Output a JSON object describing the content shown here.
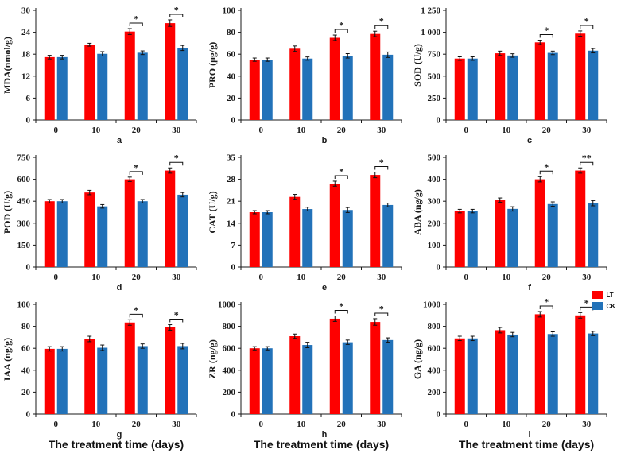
{
  "figure": {
    "xlabel": "The treatment time (days)",
    "legend": {
      "items": [
        {
          "label": "LT",
          "color": "#fe0000"
        },
        {
          "label": "CK",
          "color": "#2272b9"
        }
      ]
    },
    "colors": {
      "lt": "#fe0000",
      "ck": "#2272b9",
      "axis": "#1a1a1a"
    }
  },
  "chart_data": [
    {
      "type": "bar",
      "panel_label": "a",
      "ylabel": "MDA(nmol/g)",
      "ylim": [
        0,
        30
      ],
      "ytick_labels": [
        "0",
        "6",
        "12",
        "18",
        "24",
        "30"
      ],
      "categories": [
        "0",
        "10",
        "20",
        "30"
      ],
      "series": [
        {
          "name": "LT",
          "color": "#fe0000",
          "values": [
            17.2,
            20.6,
            24.2,
            26.5
          ],
          "errors": [
            0.5,
            0.4,
            0.8,
            0.9
          ]
        },
        {
          "name": "CK",
          "color": "#2272b9",
          "values": [
            17.2,
            18.1,
            18.4,
            19.7
          ],
          "errors": [
            0.5,
            0.6,
            0.5,
            0.7
          ]
        }
      ],
      "significance": [
        {
          "category_index": 2,
          "label": "*"
        },
        {
          "category_index": 3,
          "label": "*"
        }
      ]
    },
    {
      "type": "bar",
      "panel_label": "b",
      "ylabel": "PRO (μg/g)",
      "ylim": [
        0,
        100
      ],
      "ytick_labels": [
        "0",
        "20",
        "40",
        "60",
        "80",
        "100"
      ],
      "categories": [
        "0",
        "10",
        "20",
        "30"
      ],
      "series": [
        {
          "name": "LT",
          "color": "#fe0000",
          "values": [
            55,
            65,
            75,
            78.5
          ],
          "errors": [
            1.5,
            2.5,
            2.5,
            2.5
          ]
        },
        {
          "name": "CK",
          "color": "#2272b9",
          "values": [
            55,
            56,
            58.5,
            59.5
          ],
          "errors": [
            1.5,
            1.5,
            2,
            2.5
          ]
        }
      ],
      "significance": [
        {
          "category_index": 2,
          "label": "*"
        },
        {
          "category_index": 3,
          "label": "*"
        }
      ]
    },
    {
      "type": "bar",
      "panel_label": "c",
      "ylabel": "SOD (U/g)",
      "ylim": [
        0,
        1250
      ],
      "ytick_labels": [
        "0",
        "250",
        "500",
        "750",
        "1 000",
        "1 250"
      ],
      "categories": [
        "0",
        "10",
        "20",
        "30"
      ],
      "series": [
        {
          "name": "LT",
          "color": "#fe0000",
          "values": [
            700,
            760,
            885,
            985
          ],
          "errors": [
            20,
            25,
            25,
            30
          ]
        },
        {
          "name": "CK",
          "color": "#2272b9",
          "values": [
            700,
            735,
            765,
            790
          ],
          "errors": [
            20,
            20,
            20,
            25
          ]
        }
      ],
      "significance": [
        {
          "category_index": 2,
          "label": "*"
        },
        {
          "category_index": 3,
          "label": "*"
        }
      ]
    },
    {
      "type": "bar",
      "panel_label": "d",
      "ylabel": "POD (U/g)",
      "ylim": [
        0,
        750
      ],
      "ytick_labels": [
        "0",
        "150",
        "300",
        "450",
        "600",
        "750"
      ],
      "categories": [
        "0",
        "10",
        "20",
        "30"
      ],
      "series": [
        {
          "name": "LT",
          "color": "#fe0000",
          "values": [
            450,
            510,
            600,
            660
          ],
          "errors": [
            12,
            15,
            15,
            18
          ]
        },
        {
          "name": "CK",
          "color": "#2272b9",
          "values": [
            450,
            415,
            450,
            495
          ],
          "errors": [
            12,
            12,
            12,
            15
          ]
        }
      ],
      "significance": [
        {
          "category_index": 2,
          "label": "*"
        },
        {
          "category_index": 3,
          "label": "*"
        }
      ]
    },
    {
      "type": "bar",
      "panel_label": "e",
      "ylabel": "CAT (U/g)",
      "ylim": [
        0,
        35
      ],
      "ytick_labels": [
        "0",
        "7",
        "14",
        "21",
        "28",
        "35"
      ],
      "categories": [
        "0",
        "10",
        "20",
        "30"
      ],
      "series": [
        {
          "name": "LT",
          "color": "#fe0000",
          "values": [
            17.5,
            22.4,
            26.6,
            29.4
          ],
          "errors": [
            0.5,
            0.8,
            0.8,
            0.9
          ]
        },
        {
          "name": "CK",
          "color": "#2272b9",
          "values": [
            17.5,
            18.5,
            18.2,
            19.8
          ],
          "errors": [
            0.5,
            0.6,
            0.8,
            0.6
          ]
        }
      ],
      "significance": [
        {
          "category_index": 2,
          "label": "*"
        },
        {
          "category_index": 3,
          "label": "*"
        }
      ]
    },
    {
      "type": "bar",
      "panel_label": "f",
      "ylabel": "ABA (ng/g)",
      "ylim": [
        0,
        500
      ],
      "ytick_labels": [
        "0",
        "100",
        "200",
        "300",
        "400",
        "500"
      ],
      "categories": [
        "0",
        "10",
        "20",
        "30"
      ],
      "series": [
        {
          "name": "LT",
          "color": "#fe0000",
          "values": [
            255,
            305,
            400,
            440
          ],
          "errors": [
            8,
            10,
            12,
            12
          ]
        },
        {
          "name": "CK",
          "color": "#2272b9",
          "values": [
            255,
            265,
            287,
            291
          ],
          "errors": [
            8,
            10,
            10,
            12
          ]
        }
      ],
      "significance": [
        {
          "category_index": 2,
          "label": "*"
        },
        {
          "category_index": 3,
          "label": "**"
        }
      ]
    },
    {
      "type": "bar",
      "panel_label": "g",
      "ylabel": "IAA (ng/g)",
      "ylim": [
        0,
        100
      ],
      "ytick_labels": [
        "0",
        "20",
        "40",
        "60",
        "80",
        "100"
      ],
      "categories": [
        "0",
        "10",
        "20",
        "30"
      ],
      "series": [
        {
          "name": "LT",
          "color": "#fe0000",
          "values": [
            59.5,
            68.5,
            83.5,
            79
          ],
          "errors": [
            2,
            2.5,
            2.5,
            2.5
          ]
        },
        {
          "name": "CK",
          "color": "#2272b9",
          "values": [
            59.5,
            60.5,
            62,
            62
          ],
          "errors": [
            2,
            2.5,
            2,
            2.5
          ]
        }
      ],
      "significance": [
        {
          "category_index": 2,
          "label": "*"
        },
        {
          "category_index": 3,
          "label": "*"
        }
      ]
    },
    {
      "type": "bar",
      "panel_label": "h",
      "ylabel": "ZR (ng/g)",
      "ylim": [
        0,
        1000
      ],
      "ytick_labels": [
        "0",
        "200",
        "400",
        "600",
        "800",
        "1000"
      ],
      "categories": [
        "0",
        "10",
        "20",
        "30"
      ],
      "series": [
        {
          "name": "LT",
          "color": "#fe0000",
          "values": [
            600,
            710,
            870,
            840
          ],
          "errors": [
            15,
            20,
            25,
            30
          ]
        },
        {
          "name": "CK",
          "color": "#2272b9",
          "values": [
            600,
            630,
            655,
            675
          ],
          "errors": [
            15,
            25,
            20,
            20
          ]
        }
      ],
      "significance": [
        {
          "category_index": 2,
          "label": "*"
        },
        {
          "category_index": 3,
          "label": "*"
        }
      ]
    },
    {
      "type": "bar",
      "panel_label": "i",
      "ylabel": "GA (ng/g)",
      "ylim": [
        0,
        1000
      ],
      "ytick_labels": [
        "0",
        "200",
        "400",
        "600",
        "800",
        "1000"
      ],
      "categories": [
        "0",
        "10",
        "20",
        "30"
      ],
      "series": [
        {
          "name": "LT",
          "color": "#fe0000",
          "values": [
            690,
            765,
            910,
            900
          ],
          "errors": [
            20,
            25,
            25,
            25
          ]
        },
        {
          "name": "CK",
          "color": "#2272b9",
          "values": [
            690,
            725,
            730,
            735
          ],
          "errors": [
            20,
            20,
            20,
            20
          ]
        }
      ],
      "significance": [
        {
          "category_index": 2,
          "label": "*"
        },
        {
          "category_index": 3,
          "label": "*"
        }
      ]
    }
  ]
}
